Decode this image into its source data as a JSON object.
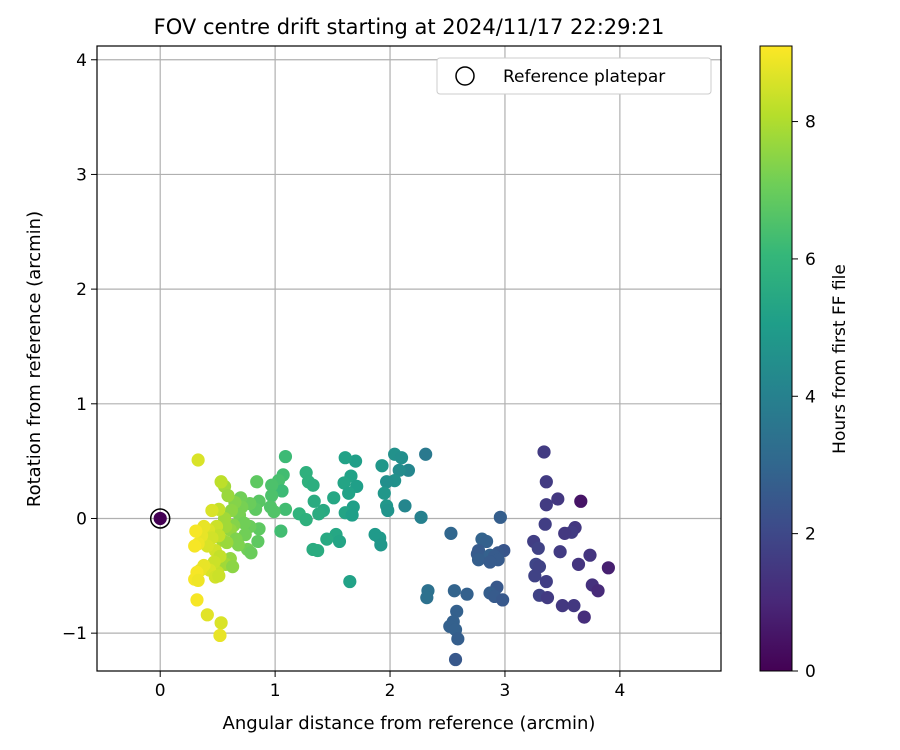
{
  "chart_data": {
    "type": "scatter",
    "title": "FOV centre drift starting at 2024/11/17 22:29:21",
    "xlabel": "Angular distance from reference (arcmin)",
    "ylabel": "Rotation from reference (arcmin)",
    "xlim": [
      -0.55,
      4.88
    ],
    "ylim": [
      -1.33,
      4.12
    ],
    "xticks": [
      0,
      1,
      2,
      3,
      4
    ],
    "yticks": [
      -1,
      0,
      1,
      2,
      3,
      4
    ],
    "grid": true,
    "legend": {
      "position": "top-right",
      "entries": [
        "Reference platepar"
      ]
    },
    "reference_point": {
      "name": "Reference platepar",
      "x": 0,
      "y": 0,
      "value": 0
    },
    "colorbar": {
      "label": "Hours from first FF file",
      "colormap": "viridis",
      "range": [
        0,
        9.1
      ],
      "ticks": [
        0,
        2,
        4,
        6,
        8
      ]
    },
    "series": [
      {
        "name": "",
        "points": [
          {
            "x": 3.34,
            "y": 0.58,
            "value": 1.6
          },
          {
            "x": 3.36,
            "y": 0.32,
            "value": 1.6
          },
          {
            "x": 3.46,
            "y": 0.17,
            "value": 1.5
          },
          {
            "x": 3.36,
            "y": 0.12,
            "value": 1.6
          },
          {
            "x": 3.66,
            "y": 0.15,
            "value": 0.5
          },
          {
            "x": 3.35,
            "y": -0.05,
            "value": 1.7
          },
          {
            "x": 3.61,
            "y": -0.08,
            "value": 1.5
          },
          {
            "x": 3.58,
            "y": -0.12,
            "value": 1.6
          },
          {
            "x": 3.52,
            "y": -0.13,
            "value": 1.5
          },
          {
            "x": 3.25,
            "y": -0.2,
            "value": 1.7
          },
          {
            "x": 3.29,
            "y": -0.26,
            "value": 1.8
          },
          {
            "x": 3.48,
            "y": -0.29,
            "value": 1.6
          },
          {
            "x": 3.74,
            "y": -0.32,
            "value": 1.4
          },
          {
            "x": 3.64,
            "y": -0.4,
            "value": 1.4
          },
          {
            "x": 3.27,
            "y": -0.4,
            "value": 1.9
          },
          {
            "x": 3.3,
            "y": -0.42,
            "value": 1.8
          },
          {
            "x": 3.9,
            "y": -0.43,
            "value": 0.8
          },
          {
            "x": 3.26,
            "y": -0.5,
            "value": 1.8
          },
          {
            "x": 3.36,
            "y": -0.55,
            "value": 1.7
          },
          {
            "x": 3.76,
            "y": -0.58,
            "value": 1.3
          },
          {
            "x": 3.81,
            "y": -0.63,
            "value": 1.1
          },
          {
            "x": 3.3,
            "y": -0.67,
            "value": 1.8
          },
          {
            "x": 3.37,
            "y": -0.69,
            "value": 1.6
          },
          {
            "x": 3.5,
            "y": -0.76,
            "value": 1.5
          },
          {
            "x": 3.6,
            "y": -0.76,
            "value": 1.5
          },
          {
            "x": 3.69,
            "y": -0.86,
            "value": 1.2
          },
          {
            "x": 2.96,
            "y": 0.01,
            "value": 2.7
          },
          {
            "x": 2.8,
            "y": -0.18,
            "value": 2.9
          },
          {
            "x": 2.84,
            "y": -0.2,
            "value": 2.8
          },
          {
            "x": 2.77,
            "y": -0.28,
            "value": 2.6
          },
          {
            "x": 2.99,
            "y": -0.28,
            "value": 2.4
          },
          {
            "x": 2.94,
            "y": -0.3,
            "value": 2.5
          },
          {
            "x": 2.76,
            "y": -0.31,
            "value": 2.6
          },
          {
            "x": 2.87,
            "y": -0.32,
            "value": 2.8
          },
          {
            "x": 2.91,
            "y": -0.33,
            "value": 2.6
          },
          {
            "x": 2.94,
            "y": -0.36,
            "value": 2.6
          },
          {
            "x": 2.77,
            "y": -0.36,
            "value": 2.7
          },
          {
            "x": 2.87,
            "y": -0.38,
            "value": 2.6
          },
          {
            "x": 2.93,
            "y": -0.6,
            "value": 2.5
          },
          {
            "x": 2.87,
            "y": -0.65,
            "value": 2.7
          },
          {
            "x": 2.91,
            "y": -0.68,
            "value": 2.6
          },
          {
            "x": 2.98,
            "y": -0.71,
            "value": 2.5
          },
          {
            "x": 2.67,
            "y": -0.66,
            "value": 2.8
          },
          {
            "x": 2.53,
            "y": -0.13,
            "value": 3.0
          },
          {
            "x": 2.56,
            "y": -0.63,
            "value": 2.9
          },
          {
            "x": 2.58,
            "y": -0.81,
            "value": 2.8
          },
          {
            "x": 2.55,
            "y": -0.9,
            "value": 2.8
          },
          {
            "x": 2.52,
            "y": -0.94,
            "value": 2.8
          },
          {
            "x": 2.57,
            "y": -0.97,
            "value": 2.8
          },
          {
            "x": 2.59,
            "y": -1.05,
            "value": 2.7
          },
          {
            "x": 2.57,
            "y": -1.23,
            "value": 2.5
          },
          {
            "x": 2.33,
            "y": -0.63,
            "value": 3.4
          },
          {
            "x": 2.32,
            "y": -0.69,
            "value": 3.4
          },
          {
            "x": 2.31,
            "y": 0.56,
            "value": 3.7
          },
          {
            "x": 2.27,
            "y": 0.01,
            "value": 4.0
          },
          {
            "x": 2.13,
            "y": 0.11,
            "value": 4.2
          },
          {
            "x": 2.16,
            "y": 0.42,
            "value": 4.2
          },
          {
            "x": 2.04,
            "y": 0.56,
            "value": 4.6
          },
          {
            "x": 2.1,
            "y": 0.53,
            "value": 4.5
          },
          {
            "x": 2.08,
            "y": 0.42,
            "value": 4.4
          },
          {
            "x": 2.04,
            "y": 0.33,
            "value": 4.6
          },
          {
            "x": 1.97,
            "y": 0.32,
            "value": 4.5
          },
          {
            "x": 1.93,
            "y": 0.46,
            "value": 4.8
          },
          {
            "x": 1.95,
            "y": 0.22,
            "value": 4.8
          },
          {
            "x": 1.97,
            "y": 0.11,
            "value": 4.8
          },
          {
            "x": 1.98,
            "y": 0.07,
            "value": 4.7
          },
          {
            "x": 1.87,
            "y": -0.14,
            "value": 4.9
          },
          {
            "x": 1.91,
            "y": -0.17,
            "value": 4.9
          },
          {
            "x": 1.92,
            "y": -0.23,
            "value": 4.8
          },
          {
            "x": 1.7,
            "y": 0.5,
            "value": 5.1
          },
          {
            "x": 1.61,
            "y": 0.53,
            "value": 5.2
          },
          {
            "x": 1.66,
            "y": 0.37,
            "value": 5.2
          },
          {
            "x": 1.71,
            "y": 0.28,
            "value": 5.1
          },
          {
            "x": 1.6,
            "y": 0.31,
            "value": 5.3
          },
          {
            "x": 1.64,
            "y": 0.22,
            "value": 5.2
          },
          {
            "x": 1.68,
            "y": 0.1,
            "value": 5.1
          },
          {
            "x": 1.61,
            "y": 0.05,
            "value": 5.3
          },
          {
            "x": 1.67,
            "y": 0.03,
            "value": 5.1
          },
          {
            "x": 1.51,
            "y": 0.18,
            "value": 5.4
          },
          {
            "x": 1.53,
            "y": -0.14,
            "value": 5.4
          },
          {
            "x": 1.56,
            "y": -0.2,
            "value": 5.3
          },
          {
            "x": 1.45,
            "y": -0.18,
            "value": 5.5
          },
          {
            "x": 1.65,
            "y": -0.55,
            "value": 5.2
          },
          {
            "x": 1.42,
            "y": 0.07,
            "value": 5.5
          },
          {
            "x": 1.38,
            "y": 0.04,
            "value": 5.6
          },
          {
            "x": 1.34,
            "y": 0.15,
            "value": 5.6
          },
          {
            "x": 1.33,
            "y": -0.27,
            "value": 5.6
          },
          {
            "x": 1.37,
            "y": -0.28,
            "value": 5.6
          },
          {
            "x": 1.27,
            "y": 0.4,
            "value": 5.8
          },
          {
            "x": 1.29,
            "y": 0.32,
            "value": 5.8
          },
          {
            "x": 1.33,
            "y": 0.29,
            "value": 5.7
          },
          {
            "x": 1.21,
            "y": 0.04,
            "value": 5.9
          },
          {
            "x": 1.27,
            "y": -0.01,
            "value": 5.8
          },
          {
            "x": 1.09,
            "y": 0.54,
            "value": 6.2
          },
          {
            "x": 1.07,
            "y": 0.38,
            "value": 6.3
          },
          {
            "x": 1.03,
            "y": 0.33,
            "value": 6.4
          },
          {
            "x": 1.06,
            "y": 0.24,
            "value": 6.2
          },
          {
            "x": 1.09,
            "y": 0.08,
            "value": 6.3
          },
          {
            "x": 1.05,
            "y": -0.11,
            "value": 6.3
          },
          {
            "x": 0.97,
            "y": 0.29,
            "value": 6.5
          },
          {
            "x": 0.97,
            "y": 0.2,
            "value": 6.5
          },
          {
            "x": 0.96,
            "y": 0.1,
            "value": 6.6
          },
          {
            "x": 0.99,
            "y": 0.06,
            "value": 6.6
          },
          {
            "x": 0.84,
            "y": 0.32,
            "value": 6.8
          },
          {
            "x": 0.86,
            "y": 0.15,
            "value": 6.7
          },
          {
            "x": 0.83,
            "y": 0.08,
            "value": 6.8
          },
          {
            "x": 0.86,
            "y": -0.09,
            "value": 6.8
          },
          {
            "x": 0.85,
            "y": -0.2,
            "value": 6.8
          },
          {
            "x": 0.78,
            "y": 0.13,
            "value": 7.0
          },
          {
            "x": 0.78,
            "y": -0.07,
            "value": 7.0
          },
          {
            "x": 0.74,
            "y": -0.14,
            "value": 7.1
          },
          {
            "x": 0.76,
            "y": -0.27,
            "value": 7.1
          },
          {
            "x": 0.79,
            "y": -0.3,
            "value": 7.0
          },
          {
            "x": 0.7,
            "y": 0.18,
            "value": 7.1
          },
          {
            "x": 0.71,
            "y": 0.1,
            "value": 7.2
          },
          {
            "x": 0.69,
            "y": 0.03,
            "value": 7.2
          },
          {
            "x": 0.73,
            "y": -0.04,
            "value": 7.1
          },
          {
            "x": 0.65,
            "y": 0.14,
            "value": 7.4
          },
          {
            "x": 0.62,
            "y": 0.07,
            "value": 7.5
          },
          {
            "x": 0.64,
            "y": -0.06,
            "value": 7.4
          },
          {
            "x": 0.61,
            "y": -0.1,
            "value": 7.6
          },
          {
            "x": 0.66,
            "y": -0.18,
            "value": 7.3
          },
          {
            "x": 0.68,
            "y": -0.23,
            "value": 7.3
          },
          {
            "x": 0.56,
            "y": 0.28,
            "value": 7.8
          },
          {
            "x": 0.59,
            "y": 0.2,
            "value": 7.7
          },
          {
            "x": 0.56,
            "y": 0.0,
            "value": 7.8
          },
          {
            "x": 0.57,
            "y": -0.07,
            "value": 7.8
          },
          {
            "x": 0.54,
            "y": -0.19,
            "value": 7.9
          },
          {
            "x": 0.58,
            "y": -0.21,
            "value": 7.7
          },
          {
            "x": 0.61,
            "y": -0.35,
            "value": 7.6
          },
          {
            "x": 0.57,
            "y": -0.4,
            "value": 7.8
          },
          {
            "x": 0.63,
            "y": -0.42,
            "value": 7.5
          },
          {
            "x": 0.53,
            "y": 0.32,
            "value": 8.2
          },
          {
            "x": 0.51,
            "y": 0.08,
            "value": 8.3
          },
          {
            "x": 0.49,
            "y": -0.07,
            "value": 8.4
          },
          {
            "x": 0.51,
            "y": -0.15,
            "value": 8.3
          },
          {
            "x": 0.48,
            "y": -0.28,
            "value": 8.5
          },
          {
            "x": 0.52,
            "y": -0.33,
            "value": 8.3
          },
          {
            "x": 0.5,
            "y": -0.47,
            "value": 8.3
          },
          {
            "x": 0.47,
            "y": -0.38,
            "value": 8.4
          },
          {
            "x": 0.45,
            "y": 0.07,
            "value": 8.6
          },
          {
            "x": 0.42,
            "y": -0.1,
            "value": 8.6
          },
          {
            "x": 0.45,
            "y": -0.17,
            "value": 8.5
          },
          {
            "x": 0.41,
            "y": -0.24,
            "value": 8.6
          },
          {
            "x": 0.43,
            "y": -0.45,
            "value": 8.6
          },
          {
            "x": 0.48,
            "y": -0.51,
            "value": 8.5
          },
          {
            "x": 0.51,
            "y": -0.5,
            "value": 8.4
          },
          {
            "x": 0.38,
            "y": -0.07,
            "value": 8.8
          },
          {
            "x": 0.36,
            "y": -0.15,
            "value": 8.8
          },
          {
            "x": 0.33,
            "y": -0.22,
            "value": 8.9
          },
          {
            "x": 0.38,
            "y": -0.41,
            "value": 8.8
          },
          {
            "x": 0.35,
            "y": -0.45,
            "value": 8.8
          },
          {
            "x": 0.31,
            "y": -0.11,
            "value": 9.0
          },
          {
            "x": 0.3,
            "y": -0.24,
            "value": 9.0
          },
          {
            "x": 0.32,
            "y": -0.47,
            "value": 9.0
          },
          {
            "x": 0.3,
            "y": -0.53,
            "value": 9.0
          },
          {
            "x": 0.33,
            "y": -0.54,
            "value": 8.9
          },
          {
            "x": 0.32,
            "y": -0.71,
            "value": 9.0
          },
          {
            "x": 0.41,
            "y": -0.84,
            "value": 8.7
          },
          {
            "x": 0.53,
            "y": -0.91,
            "value": 8.6
          },
          {
            "x": 0.52,
            "y": -1.02,
            "value": 8.8
          },
          {
            "x": 0.33,
            "y": 0.51,
            "value": 8.6
          }
        ]
      }
    ]
  }
}
